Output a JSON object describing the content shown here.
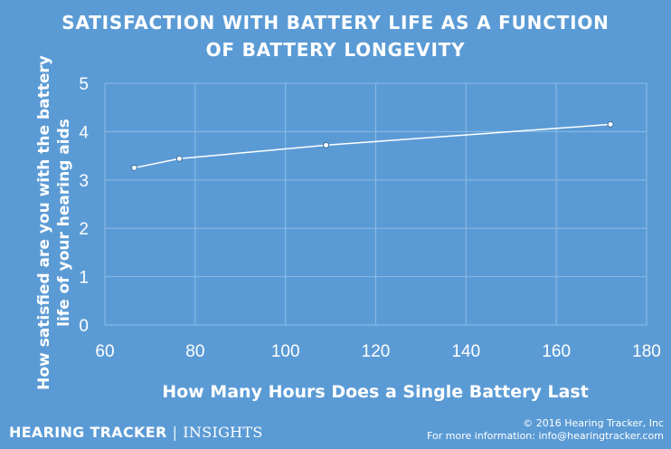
{
  "header": {
    "title_line1": "SATISFACTION WITH BATTERY LIFE AS A FUNCTION",
    "title_line2": "OF BATTERY LONGEVITY"
  },
  "axes": {
    "ylabel_line1": "How satisfied are you with the battery",
    "ylabel_line2": "life of your hearing aids",
    "xlabel": "How Many Hours Does a Single Battery Last"
  },
  "footer": {
    "brand": "HEARING TRACKER",
    "brand_sep": "|",
    "brand_sub": "INSIGHTS",
    "copyright": "© 2016 Hearing Tracker, Inc",
    "contact": "For more information: info@hearingtracker.com"
  },
  "colors": {
    "background": "#5b9bd5",
    "grid": "#8dbbe6",
    "line": "#ffffff"
  },
  "chart_data": {
    "type": "line",
    "title": "SATISFACTION WITH BATTERY LIFE AS A FUNCTION OF BATTERY LONGEVITY",
    "xlabel": "How Many Hours Does a Single Battery Last",
    "ylabel": "How satisfied are you with the battery life of your hearing aids",
    "xlim": [
      60,
      180
    ],
    "ylim": [
      0,
      5
    ],
    "xticks": [
      60,
      80,
      100,
      120,
      140,
      160,
      180
    ],
    "yticks": [
      0,
      1,
      2,
      3,
      4,
      5
    ],
    "grid": true,
    "legend": "none",
    "series": [
      {
        "x": [
          66.5,
          76.5,
          109,
          172
        ],
        "y": [
          3.25,
          3.44,
          3.72,
          4.15
        ]
      }
    ]
  }
}
